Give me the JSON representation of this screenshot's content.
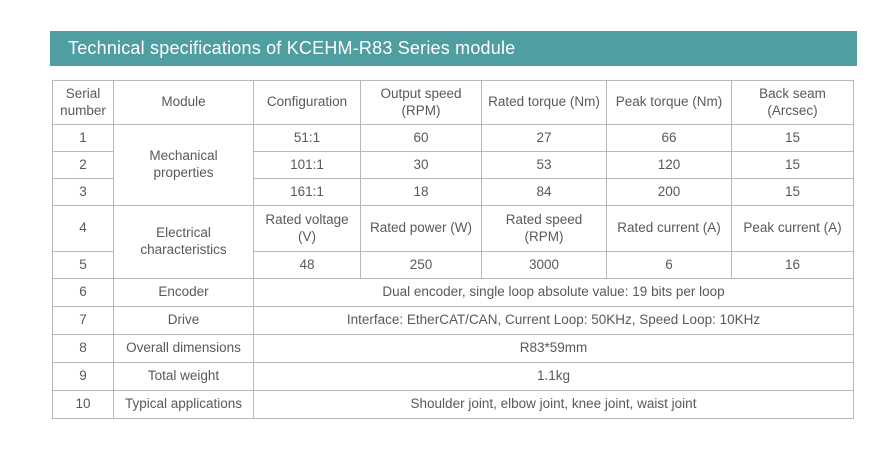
{
  "title_bar": {
    "title": "Technical specifications of KCEHM-R83 Series module",
    "bg_color": "#4E9EA2",
    "text_color": "#FFFFFF"
  },
  "table": {
    "border_color": "#B9B9B9",
    "text_color": "#595959",
    "columns": [
      "Serial number",
      "Module",
      "Configuration",
      "Output speed (RPM)",
      "Rated torque (Nm)",
      "Peak torque (Nm)",
      "Back seam (Arcsec)"
    ],
    "merged_modules": {
      "mechanical": "Mechanical properties",
      "electrical": "Electrical characteristics"
    },
    "mechanical_rows": [
      {
        "serial": "1",
        "configuration": "51:1",
        "output_speed": "60",
        "rated_torque": "27",
        "peak_torque": "66",
        "back_seam": "15"
      },
      {
        "serial": "2",
        "configuration": "101:1",
        "output_speed": "30",
        "rated_torque": "53",
        "peak_torque": "120",
        "back_seam": "15"
      },
      {
        "serial": "3",
        "configuration": "161:1",
        "output_speed": "18",
        "rated_torque": "84",
        "peak_torque": "200",
        "back_seam": "15"
      }
    ],
    "electrical_header": {
      "serial": "4",
      "labels": [
        "Rated voltage (V)",
        "Rated power (W)",
        "Rated speed (RPM)",
        "Rated current (A)",
        "Peak current (A)"
      ]
    },
    "electrical_values": {
      "serial": "5",
      "values": [
        "48",
        "250",
        "3000",
        "6",
        "16"
      ]
    },
    "single_rows": [
      {
        "serial": "6",
        "module": "Encoder",
        "value": "Dual encoder, single loop absolute value: 19 bits per loop"
      },
      {
        "serial": "7",
        "module": "Drive",
        "value": "Interface: EtherCAT/CAN, Current Loop: 50KHz, Speed Loop: 10KHz"
      },
      {
        "serial": "8",
        "module": "Overall dimensions",
        "value": "R83*59mm"
      },
      {
        "serial": "9",
        "module": "Total weight",
        "value": "1.1kg"
      },
      {
        "serial": "10",
        "module": "Typical applications",
        "value": "Shoulder joint, elbow joint, knee joint, waist joint"
      }
    ]
  }
}
